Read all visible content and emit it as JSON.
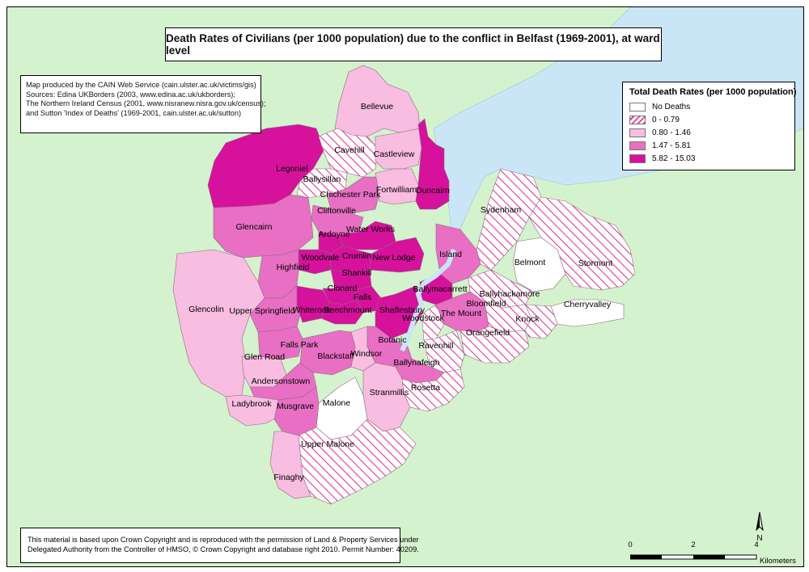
{
  "title": "Death Rates of Civilians (per 1000 population) due to the conflict in Belfast (1969-2001), at ward level",
  "source_lines": [
    "Map produced by the CAIN Web Service (cain.ulster.ac.uk/victims/gis)",
    "Sources: Edina UKBorders (2003, www.edina.ac.uk/ukborders);",
    "The Northern Ireland Census (2001, www.nisranew.nisra.gov.uk/census);",
    "and Sutton 'Index of Deaths' (1969-2001, cain.ulster.ac.uk/sutton)"
  ],
  "legend": {
    "title": "Total Death Rates (per 1000 population)",
    "items": [
      {
        "label": "No Deaths",
        "style": "none",
        "color": "#ffffff"
      },
      {
        "label": "0 - 0.79",
        "style": "hatch",
        "color": "#e33a8f"
      },
      {
        "label": "0.80 - 1.46",
        "style": "solid",
        "color": "#f8bde0"
      },
      {
        "label": "1.47 - 5.81",
        "style": "solid",
        "color": "#e86fc4"
      },
      {
        "label": "5.82 - 15.03",
        "style": "solid",
        "color": "#d6119c"
      }
    ]
  },
  "copyright_lines": [
    "This material is based upon Crown Copyright and is reproduced with the permission of Land & Property Services under",
    "Delegated Authority from the Controller of HMSO, © Crown Copyright and database right 2010. Permit Number: 40209."
  ],
  "scale": {
    "ticks": [
      "0",
      "2",
      "4"
    ],
    "unit": "Kilometers"
  },
  "north_label": "N",
  "colors": {
    "land": "#d4f2cd",
    "water": "#c9e5f6",
    "none": "#ffffff",
    "low": "#e33a8f",
    "mid": "#f8bde0",
    "high": "#e86fc4",
    "top": "#d6119c"
  },
  "wards": [
    {
      "name": "Legoniel",
      "class": "top"
    },
    {
      "name": "Bellevue",
      "class": "mid"
    },
    {
      "name": "Cavehill",
      "class": "low"
    },
    {
      "name": "Castleview",
      "class": "mid"
    },
    {
      "name": "Ballysillan",
      "class": "low"
    },
    {
      "name": "Chichester Park",
      "class": "high"
    },
    {
      "name": "Fortwilliam",
      "class": "mid"
    },
    {
      "name": "Duncairn",
      "class": "top"
    },
    {
      "name": "Cliftonville",
      "class": "high"
    },
    {
      "name": "Sydenham",
      "class": "low"
    },
    {
      "name": "Glencairn",
      "class": "high"
    },
    {
      "name": "Ardoyne",
      "class": "top"
    },
    {
      "name": "Water Works",
      "class": "top"
    },
    {
      "name": "Woodvale",
      "class": "top"
    },
    {
      "name": "Crumlin",
      "class": "top"
    },
    {
      "name": "New Lodge",
      "class": "top"
    },
    {
      "name": "Island",
      "class": "high"
    },
    {
      "name": "Belmont",
      "class": "none"
    },
    {
      "name": "Stormont",
      "class": "low"
    },
    {
      "name": "Highfield",
      "class": "high"
    },
    {
      "name": "Shankill",
      "class": "top"
    },
    {
      "name": "Clonard",
      "class": "top"
    },
    {
      "name": "Falls",
      "class": "top"
    },
    {
      "name": "Ballymacarrett",
      "class": "top"
    },
    {
      "name": "Ballyhackamore",
      "class": "low"
    },
    {
      "name": "Glencolin",
      "class": "mid"
    },
    {
      "name": "Upper Springfield",
      "class": "high"
    },
    {
      "name": "Whiterock",
      "class": "top"
    },
    {
      "name": "Beechmount",
      "class": "top"
    },
    {
      "name": "Shaftesbury",
      "class": "top"
    },
    {
      "name": "Bloomfield",
      "class": "low"
    },
    {
      "name": "Cherryvalley",
      "class": "none"
    },
    {
      "name": "The Mount",
      "class": "high"
    },
    {
      "name": "Woodstock",
      "class": "low"
    },
    {
      "name": "Knock",
      "class": "low"
    },
    {
      "name": "Orangefield",
      "class": "low"
    },
    {
      "name": "Falls Park",
      "class": "high"
    },
    {
      "name": "Botanic",
      "class": "high"
    },
    {
      "name": "Ravenhill",
      "class": "low"
    },
    {
      "name": "Glen Road",
      "class": "mid"
    },
    {
      "name": "Blackstaff",
      "class": "high"
    },
    {
      "name": "Windsor",
      "class": "mid"
    },
    {
      "name": "Ballynafeigh",
      "class": "high"
    },
    {
      "name": "Andersonstown",
      "class": "high"
    },
    {
      "name": "Rosetta",
      "class": "low"
    },
    {
      "name": "Stranmillis",
      "class": "mid"
    },
    {
      "name": "Ladybrook",
      "class": "mid"
    },
    {
      "name": "Malone",
      "class": "none"
    },
    {
      "name": "Musgrave",
      "class": "high"
    },
    {
      "name": "Upper Malone",
      "class": "low"
    },
    {
      "name": "Finaghy",
      "class": "mid"
    }
  ]
}
